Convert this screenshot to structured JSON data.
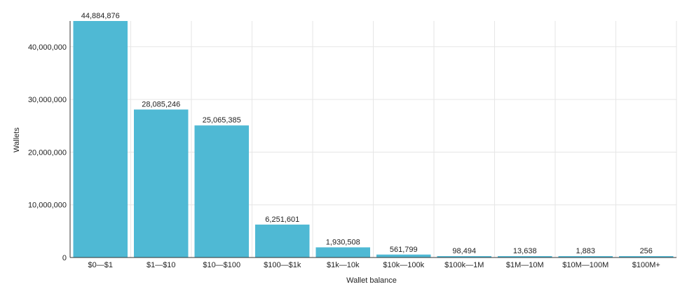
{
  "chart_data": {
    "type": "bar",
    "title": "",
    "xlabel": "Wallet balance",
    "ylabel": "Wallets",
    "categories": [
      "$0—$1",
      "$1—$10",
      "$10—$100",
      "$100—$1k",
      "$1k—10k",
      "$10k—100k",
      "$100k—1M",
      "$1M—10M",
      "$10M—100M",
      "$100M+"
    ],
    "values": [
      44884876,
      28085246,
      25065385,
      6251601,
      1930508,
      561799,
      98494,
      13638,
      1883,
      256
    ],
    "data_labels": [
      "44,884,876",
      "28,085,246",
      "25,065,385",
      "6,251,601",
      "1,930,508",
      "561,799",
      "98,494",
      "13,638",
      "1,883",
      "256"
    ],
    "yticks": [
      0,
      10000000,
      20000000,
      30000000,
      40000000
    ],
    "ytick_labels": [
      "0",
      "10,000,000",
      "20,000,000",
      "30,000,000",
      "40,000,000"
    ],
    "ylim": [
      0,
      45000000
    ],
    "grid": true,
    "bar_color": "#4fb9d4"
  }
}
